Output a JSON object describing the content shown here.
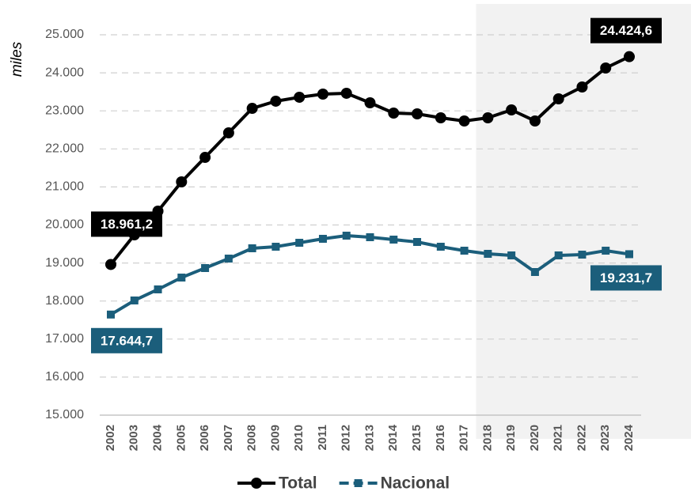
{
  "chart_data": {
    "type": "line",
    "y_label": "miles",
    "categories": [
      "2002",
      "2003",
      "2004",
      "2005",
      "2006",
      "2007",
      "2008",
      "2009",
      "2010",
      "2011",
      "2012",
      "2013",
      "2014",
      "2015",
      "2016",
      "2017",
      "2018",
      "2019",
      "2020",
      "2021",
      "2022",
      "2023",
      "2024"
    ],
    "shaded_from": "2018",
    "series": [
      {
        "name": "Total",
        "color": "#000000",
        "marker": "circle",
        "values": [
          18961.2,
          19740,
          20364,
          21133,
          21777,
          22422,
          23066,
          23254,
          23358,
          23441,
          23462,
          23212,
          22942,
          22921,
          22817,
          22734,
          22817,
          23025,
          22734,
          23316,
          23628,
          24127,
          24424.6
        ],
        "value_labels": [
          "18.961,2",
          null,
          null,
          null,
          null,
          null,
          null,
          null,
          null,
          null,
          null,
          null,
          null,
          null,
          null,
          null,
          null,
          null,
          null,
          null,
          null,
          null,
          "24.424,6"
        ]
      },
      {
        "name": "Nacional",
        "color": "#1b5e7b",
        "marker": "square",
        "values": [
          17644.7,
          18015,
          18306,
          18617,
          18867,
          19116,
          19387,
          19428,
          19532,
          19636,
          19719,
          19678,
          19615,
          19553,
          19428,
          19324,
          19241,
          19200,
          18763,
          19200,
          19220,
          19324,
          19231.7
        ],
        "value_labels": [
          "17.644,7",
          null,
          null,
          null,
          null,
          null,
          null,
          null,
          null,
          null,
          null,
          null,
          null,
          null,
          null,
          null,
          null,
          null,
          null,
          null,
          null,
          null,
          "19.231,7"
        ]
      }
    ],
    "ylim": [
      15000,
      25000
    ],
    "yticks": [
      {
        "value": 15000,
        "label": "15.000"
      },
      {
        "value": 16000,
        "label": "16.000"
      },
      {
        "value": 17000,
        "label": "17.000"
      },
      {
        "value": 18000,
        "label": "18.000"
      },
      {
        "value": 19000,
        "label": "19.000"
      },
      {
        "value": 20000,
        "label": "20.000"
      },
      {
        "value": 21000,
        "label": "21.000"
      },
      {
        "value": 22000,
        "label": "22.000"
      },
      {
        "value": 23000,
        "label": "23.000"
      },
      {
        "value": 24000,
        "label": "24.000"
      },
      {
        "value": 25000,
        "label": "25.000"
      }
    ],
    "grid": true,
    "legend": "bottom"
  }
}
